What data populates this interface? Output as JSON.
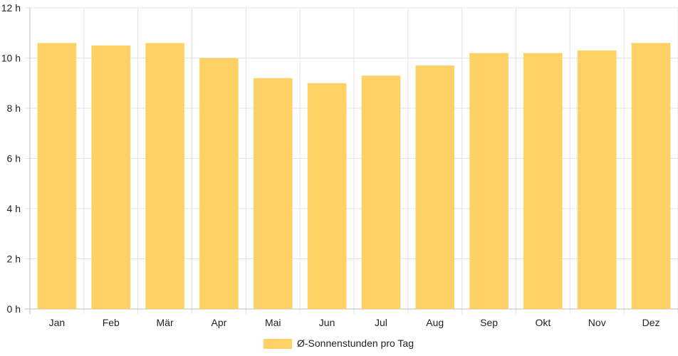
{
  "chart_data": {
    "type": "bar",
    "categories": [
      "Jan",
      "Feb",
      "Mär",
      "Apr",
      "Mai",
      "Jun",
      "Jul",
      "Aug",
      "Sep",
      "Okt",
      "Nov",
      "Dez"
    ],
    "series": [
      {
        "name": "Ø-Sonnenstunden pro Tag",
        "values": [
          10.6,
          10.5,
          10.6,
          10.0,
          9.2,
          9.0,
          9.3,
          9.7,
          10.2,
          10.2,
          10.3,
          10.6
        ],
        "color": "#fdd166"
      }
    ],
    "title": "",
    "xlabel": "",
    "ylabel": "",
    "ylim": [
      0,
      12
    ],
    "yticks": [
      0,
      2,
      4,
      6,
      8,
      10,
      12
    ],
    "ytick_suffix": " h",
    "grid": true,
    "legend": "bottom-center"
  }
}
